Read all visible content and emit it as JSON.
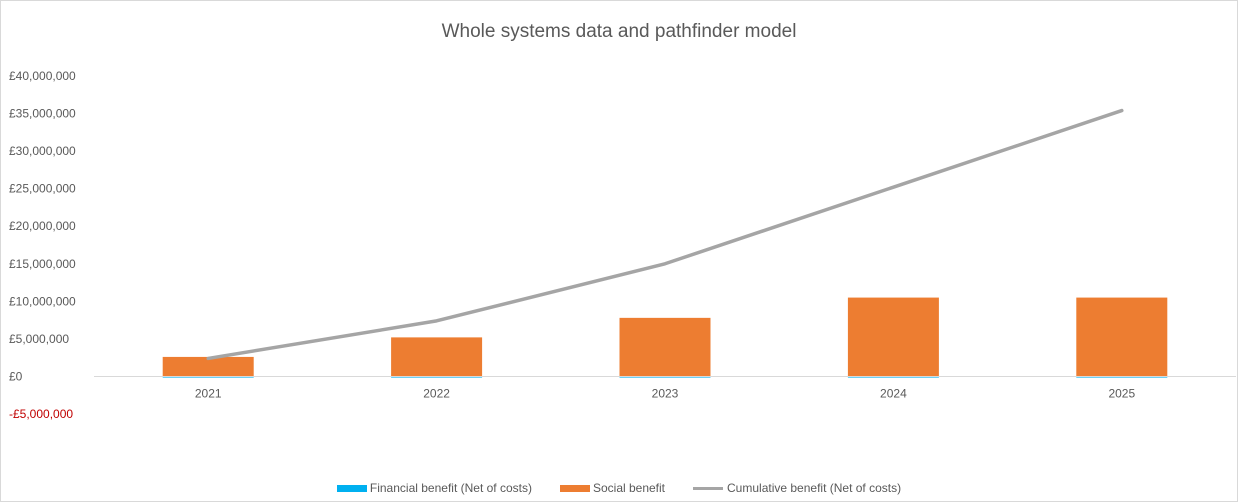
{
  "chart_data": {
    "type": "bar",
    "title": "Whole systems data and pathfinder model",
    "categories": [
      "2021",
      "2022",
      "2023",
      "2024",
      "2025"
    ],
    "y_ticks": [
      {
        "value": -5000000,
        "label": "-£5,000,000",
        "color": "#c00000"
      },
      {
        "value": 0,
        "label": "£0"
      },
      {
        "value": 5000000,
        "label": "£5,000,000"
      },
      {
        "value": 10000000,
        "label": "£10,000,000"
      },
      {
        "value": 15000000,
        "label": "£15,000,000"
      },
      {
        "value": 20000000,
        "label": "£20,000,000"
      },
      {
        "value": 25000000,
        "label": "£25,000,000"
      },
      {
        "value": 30000000,
        "label": "£30,000,000"
      },
      {
        "value": 35000000,
        "label": "£35,000,000"
      },
      {
        "value": 40000000,
        "label": "£40,000,000"
      }
    ],
    "ylim": [
      -5000000,
      40000000
    ],
    "grid": false,
    "legend_position": "bottom",
    "series": [
      {
        "name": "Financial benefit (Net of costs)",
        "kind": "bar",
        "color": "#00b0f0",
        "values": [
          -150000,
          -150000,
          -150000,
          -150000,
          -150000
        ]
      },
      {
        "name": "Social benefit",
        "kind": "bar",
        "color": "#ed7d31",
        "values": [
          2600000,
          5200000,
          7800000,
          10500000,
          10500000
        ]
      },
      {
        "name": "Cumulative benefit (Net of costs)",
        "kind": "line",
        "color": "#a5a5a5",
        "values": [
          2400000,
          7400000,
          15000000,
          25200000,
          35400000
        ]
      }
    ]
  }
}
